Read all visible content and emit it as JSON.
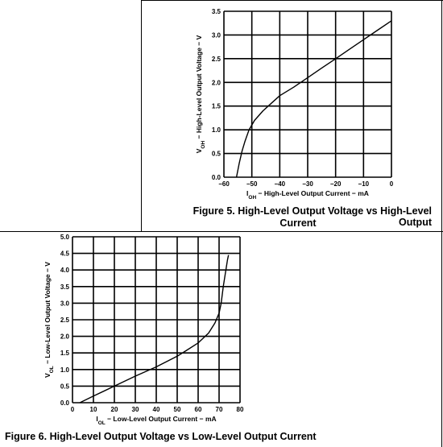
{
  "chart_data": [
    {
      "type": "line",
      "xlim": [
        -60,
        0
      ],
      "ylim": [
        0,
        3.5
      ],
      "x_ticks": [
        -60,
        -50,
        -40,
        -30,
        -20,
        -10,
        0
      ],
      "y_ticks": [
        0.0,
        0.5,
        1.0,
        1.5,
        2.0,
        2.5,
        3.0,
        3.5
      ],
      "x_tick_labels": [
        "−60",
        "−50",
        "−40",
        "−30",
        "−20",
        "−10",
        "0"
      ],
      "y_tick_labels": [
        "0.0",
        "0.5",
        "1.0",
        "1.5",
        "2.0",
        "2.5",
        "3.0",
        "3.5"
      ],
      "xlabel_main": "I",
      "xlabel_sub": "OH",
      "xlabel_rest": " − High-Level Output Current − mA",
      "ylabel_main": "V",
      "ylabel_sub": "OH",
      "ylabel_rest": " − High-Level Output Voltage − V",
      "grid": true,
      "series": [
        {
          "x": [
            -55.5,
            -54.5,
            -53.5,
            -52.5,
            -51,
            -49,
            -46,
            -43,
            -40,
            -35,
            -30,
            -25,
            -20,
            -15,
            -10,
            -5,
            0
          ],
          "y": [
            0.0,
            0.3,
            0.55,
            0.75,
            1.0,
            1.2,
            1.4,
            1.56,
            1.72,
            1.9,
            2.1,
            2.3,
            2.5,
            2.7,
            2.9,
            3.1,
            3.3
          ]
        }
      ],
      "caption_line1": "Figure 5. High-Level Output Voltage vs High-Level Output",
      "caption_line2": "Current"
    },
    {
      "type": "line",
      "xlim": [
        0,
        80
      ],
      "ylim": [
        0,
        5.0
      ],
      "x_ticks": [
        0,
        10,
        20,
        30,
        40,
        50,
        60,
        70,
        80
      ],
      "y_ticks": [
        0.0,
        0.5,
        1.0,
        1.5,
        2.0,
        2.5,
        3.0,
        3.5,
        4.0,
        4.5,
        5.0
      ],
      "x_tick_labels": [
        "0",
        "10",
        "20",
        "30",
        "40",
        "50",
        "60",
        "70",
        "80"
      ],
      "y_tick_labels": [
        "0.0",
        "0.5",
        "1.0",
        "1.5",
        "2.0",
        "2.5",
        "3.0",
        "3.5",
        "4.0",
        "4.5",
        "5.0"
      ],
      "xlabel_main": "I",
      "xlabel_sub": "OL",
      "xlabel_rest": " − Low-Level Output Current − mA",
      "ylabel_main": "V",
      "ylabel_sub": "OL",
      "ylabel_rest": " − Low-Level Output Voltage − V",
      "grid": true,
      "series": [
        {
          "x": [
            3.5,
            10,
            20,
            30,
            40,
            50,
            55,
            60,
            65,
            68,
            70,
            71,
            72,
            73,
            73.5,
            74,
            74.5
          ],
          "y": [
            0.0,
            0.2,
            0.5,
            0.8,
            1.08,
            1.4,
            1.6,
            1.8,
            2.1,
            2.4,
            2.7,
            3.0,
            3.5,
            3.9,
            4.1,
            4.3,
            4.45
          ]
        }
      ],
      "caption": "Figure 6. High-Level Output Voltage vs Low-Level Output Current"
    }
  ]
}
